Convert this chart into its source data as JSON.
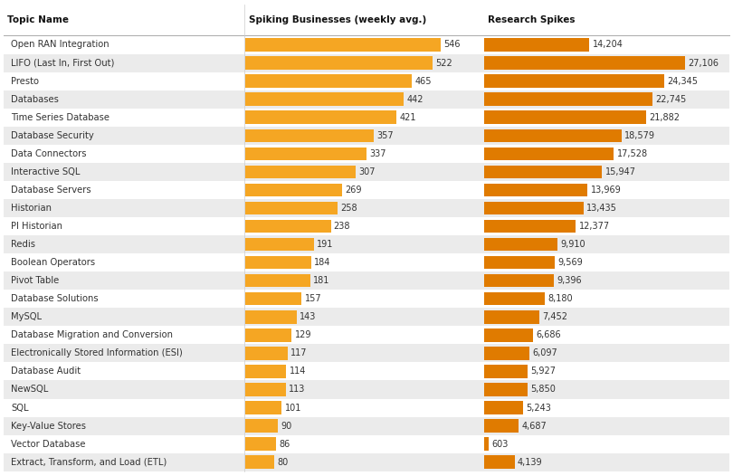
{
  "topics": [
    "Open RAN Integration",
    "LIFO (Last In, First Out)",
    "Presto",
    "Databases",
    "Time Series Database",
    "Database Security",
    "Data Connectors",
    "Interactive SQL",
    "Database Servers",
    "Historian",
    "PI Historian",
    "Redis",
    "Boolean Operators",
    "Pivot Table",
    "Database Solutions",
    "MySQL",
    "Database Migration and Conversion",
    "Electronically Stored Information (ESI)",
    "Database Audit",
    "NewSQL",
    "SQL",
    "Key-Value Stores",
    "Vector Database",
    "Extract, Transform, and Load (ETL)"
  ],
  "spiking_businesses": [
    546,
    522,
    465,
    442,
    421,
    357,
    337,
    307,
    269,
    258,
    238,
    191,
    184,
    181,
    157,
    143,
    129,
    117,
    114,
    113,
    101,
    90,
    86,
    80
  ],
  "research_spikes": [
    14204,
    27106,
    24345,
    22745,
    21882,
    18579,
    17528,
    15947,
    13969,
    13435,
    12377,
    9910,
    9569,
    9396,
    8180,
    7452,
    6686,
    6097,
    5927,
    5850,
    5243,
    4687,
    603,
    4139
  ],
  "spiking_color": "#F5A623",
  "research_color": "#E07B00",
  "col1_header": "Topic Name",
  "col2_header": "Spiking Businesses (weekly avg.)",
  "col3_header": "Research Spikes",
  "bg_color_even": "#EBEBEB",
  "bg_color_odd": "#FFFFFF",
  "header_sep_color": "#CCCCCC",
  "text_color": "#333333",
  "header_text_color": "#000000",
  "header_fontsize": 7.5,
  "row_fontsize": 7.2,
  "fig_width": 8.1,
  "fig_height": 5.26,
  "dpi": 100
}
